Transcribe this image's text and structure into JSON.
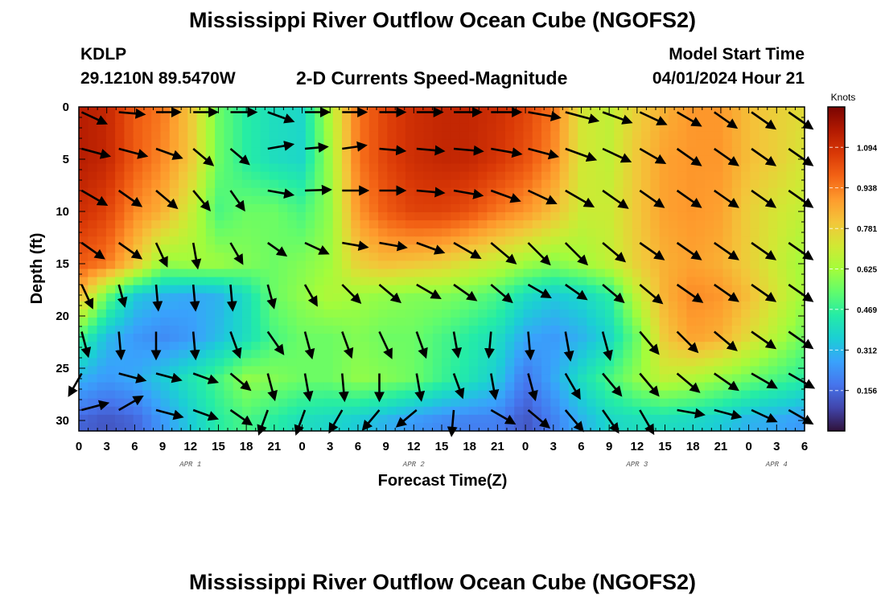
{
  "header": {
    "title": "Mississippi River Outflow Ocean Cube (NGOFS2)",
    "station": "KDLP",
    "coords": "29.1210N  89.5470W",
    "product": "2-D Currents Speed-Magnitude",
    "model_start_label": "Model Start Time",
    "model_start_value": "04/01/2024 Hour 21"
  },
  "footer_title": "Mississippi River Outflow Ocean Cube (NGOFS2)",
  "chart_data": {
    "type": "heatmap",
    "subtype": "depth-time section with current vectors",
    "xlabel": "Forecast Time(Z)",
    "ylabel": "Depth (ft)",
    "x_hours_range": [
      0,
      78
    ],
    "x_tick_labels": [
      "0",
      "3",
      "6",
      "9",
      "12",
      "15",
      "18",
      "21",
      "0",
      "3",
      "6",
      "9",
      "12",
      "15",
      "18",
      "21",
      "0",
      "3",
      "6",
      "9",
      "12",
      "15",
      "18",
      "21",
      "0",
      "3",
      "6"
    ],
    "date_labels": [
      {
        "text": "APR 1",
        "hour": 12
      },
      {
        "text": "APR 2",
        "hour": 36
      },
      {
        "text": "APR 3",
        "hour": 60
      },
      {
        "text": "APR 4",
        "hour": 75
      }
    ],
    "ylim": [
      0,
      31
    ],
    "y_ticks": [
      0,
      5,
      10,
      15,
      20,
      25,
      30
    ],
    "colorbar": {
      "unit": "Knots",
      "ticks": [
        0.156,
        0.312,
        0.469,
        0.625,
        0.781,
        0.938,
        1.094
      ],
      "range": [
        0.0,
        1.25
      ],
      "colors": [
        "#30123b",
        "#4145ab",
        "#4675ed",
        "#39a2fc",
        "#1bcfd4",
        "#24eca6",
        "#61fc6c",
        "#a4fc3b",
        "#d1e834",
        "#f3c63a",
        "#fe9b2d",
        "#f36315",
        "#d93806",
        "#b11901",
        "#7a0402"
      ]
    },
    "speed_grid": {
      "columns_hours": [
        0,
        3,
        6,
        9,
        12,
        15,
        18,
        21,
        24,
        27,
        30,
        33,
        36,
        39,
        42,
        45,
        48,
        51,
        54,
        57,
        60,
        63,
        66,
        69,
        72,
        75,
        78
      ],
      "depths_ft": [
        0,
        5,
        10,
        15,
        18,
        22,
        26,
        30
      ],
      "values": [
        [
          1.15,
          1.12,
          1.0,
          0.95,
          0.8,
          0.55,
          0.45,
          0.4,
          0.38,
          0.65,
          0.95,
          1.05,
          1.1,
          1.12,
          1.12,
          1.1,
          1.05,
          0.95,
          0.72,
          0.68,
          0.78,
          0.85,
          0.9,
          0.9,
          0.82,
          0.78,
          0.75
        ],
        [
          1.15,
          1.12,
          1.0,
          0.92,
          0.8,
          0.55,
          0.45,
          0.4,
          0.38,
          0.62,
          0.95,
          1.05,
          1.1,
          1.12,
          1.12,
          1.08,
          1.02,
          0.92,
          0.72,
          0.68,
          0.8,
          0.88,
          0.9,
          0.9,
          0.82,
          0.78,
          0.72
        ],
        [
          1.1,
          1.05,
          0.92,
          0.85,
          0.7,
          0.5,
          0.55,
          0.55,
          0.5,
          0.6,
          0.9,
          1.0,
          1.05,
          1.05,
          1.02,
          0.95,
          0.9,
          0.82,
          0.7,
          0.7,
          0.8,
          0.88,
          0.9,
          0.88,
          0.78,
          0.72,
          0.68
        ],
        [
          1.0,
          0.95,
          0.8,
          0.6,
          0.62,
          0.62,
          0.58,
          0.55,
          0.58,
          0.62,
          0.78,
          0.82,
          0.8,
          0.78,
          0.72,
          0.68,
          0.62,
          0.58,
          0.62,
          0.68,
          0.78,
          0.85,
          0.88,
          0.85,
          0.78,
          0.7,
          0.62
        ],
        [
          0.85,
          0.55,
          0.35,
          0.3,
          0.28,
          0.3,
          0.4,
          0.55,
          0.6,
          0.65,
          0.62,
          0.6,
          0.58,
          0.58,
          0.55,
          0.5,
          0.4,
          0.35,
          0.38,
          0.45,
          0.68,
          0.85,
          0.92,
          0.9,
          0.82,
          0.72,
          0.62
        ],
        [
          0.5,
          0.32,
          0.25,
          0.22,
          0.25,
          0.32,
          0.4,
          0.5,
          0.55,
          0.55,
          0.58,
          0.55,
          0.55,
          0.5,
          0.45,
          0.4,
          0.28,
          0.25,
          0.3,
          0.38,
          0.55,
          0.8,
          0.88,
          0.85,
          0.75,
          0.65,
          0.55
        ],
        [
          0.3,
          0.25,
          0.28,
          0.35,
          0.42,
          0.5,
          0.6,
          0.58,
          0.55,
          0.55,
          0.6,
          0.58,
          0.55,
          0.48,
          0.42,
          0.35,
          0.18,
          0.28,
          0.4,
          0.5,
          0.6,
          0.68,
          0.65,
          0.6,
          0.55,
          0.5,
          0.45
        ],
        [
          0.15,
          0.12,
          0.15,
          0.25,
          0.35,
          0.45,
          0.5,
          0.45,
          0.4,
          0.38,
          0.35,
          0.3,
          0.25,
          0.22,
          0.2,
          0.2,
          0.12,
          0.2,
          0.3,
          0.38,
          0.4,
          0.4,
          0.38,
          0.35,
          0.3,
          0.28,
          0.25
        ]
      ]
    },
    "vector_rows_depth_ft": [
      0.5,
      4,
      8,
      13,
      17,
      21.5,
      25.5,
      29
    ],
    "vector_cols_hours": [
      0,
      4,
      8,
      12,
      16,
      20,
      24,
      28,
      32,
      36,
      40,
      44,
      48,
      52,
      56,
      60,
      64,
      68,
      72,
      76
    ],
    "vector_angles_deg": [
      [
        25,
        5,
        0,
        0,
        0,
        20,
        0,
        0,
        0,
        0,
        0,
        0,
        10,
        15,
        20,
        25,
        30,
        35,
        35,
        35
      ],
      [
        15,
        15,
        20,
        40,
        40,
        -10,
        -5,
        -8,
        5,
        5,
        5,
        10,
        15,
        20,
        25,
        30,
        35,
        35,
        35,
        35
      ],
      [
        30,
        35,
        40,
        50,
        55,
        10,
        -2,
        0,
        0,
        5,
        10,
        20,
        25,
        30,
        35,
        35,
        35,
        35,
        35,
        35
      ],
      [
        35,
        35,
        65,
        80,
        60,
        35,
        25,
        10,
        10,
        20,
        30,
        40,
        45,
        45,
        40,
        35,
        35,
        35,
        35,
        35
      ],
      [
        65,
        75,
        85,
        85,
        85,
        75,
        60,
        45,
        40,
        30,
        35,
        40,
        30,
        35,
        40,
        40,
        35,
        35,
        35,
        35
      ],
      [
        75,
        85,
        90,
        85,
        70,
        55,
        75,
        70,
        65,
        70,
        80,
        95,
        85,
        80,
        75,
        50,
        45,
        40,
        35,
        35
      ],
      [
        120,
        15,
        15,
        20,
        40,
        75,
        80,
        85,
        90,
        80,
        70,
        80,
        75,
        60,
        50,
        50,
        40,
        35,
        30,
        30
      ],
      [
        -15,
        -30,
        15,
        20,
        35,
        110,
        110,
        120,
        130,
        140,
        95,
        30,
        40,
        50,
        55,
        60,
        10,
        15,
        25,
        30
      ]
    ],
    "vector_lengths": [
      [
        32,
        30,
        28,
        28,
        30,
        32,
        28,
        28,
        30,
        30,
        32,
        35,
        38,
        40,
        36,
        34,
        32,
        32,
        34,
        34
      ],
      [
        34,
        34,
        32,
        30,
        28,
        30,
        26,
        28,
        30,
        32,
        34,
        36,
        36,
        38,
        36,
        34,
        34,
        34,
        34,
        34
      ],
      [
        34,
        32,
        32,
        30,
        28,
        30,
        30,
        30,
        30,
        32,
        34,
        36,
        36,
        38,
        36,
        34,
        34,
        34,
        34,
        34
      ],
      [
        32,
        32,
        30,
        30,
        28,
        26,
        30,
        30,
        32,
        34,
        36,
        38,
        36,
        36,
        34,
        34,
        34,
        34,
        34,
        34
      ],
      [
        30,
        26,
        30,
        30,
        30,
        28,
        28,
        30,
        32,
        32,
        32,
        32,
        30,
        30,
        32,
        34,
        36,
        34,
        34,
        34
      ],
      [
        30,
        32,
        32,
        32,
        32,
        32,
        32,
        32,
        34,
        32,
        30,
        30,
        32,
        34,
        34,
        34,
        34,
        34,
        34,
        34
      ],
      [
        30,
        32,
        30,
        30,
        30,
        32,
        32,
        32,
        32,
        32,
        30,
        30,
        32,
        34,
        34,
        34,
        34,
        34,
        34,
        34
      ],
      [
        32,
        32,
        32,
        30,
        30,
        30,
        30,
        30,
        30,
        30,
        30,
        32,
        32,
        32,
        32,
        32,
        32,
        32,
        32,
        32
      ]
    ]
  }
}
